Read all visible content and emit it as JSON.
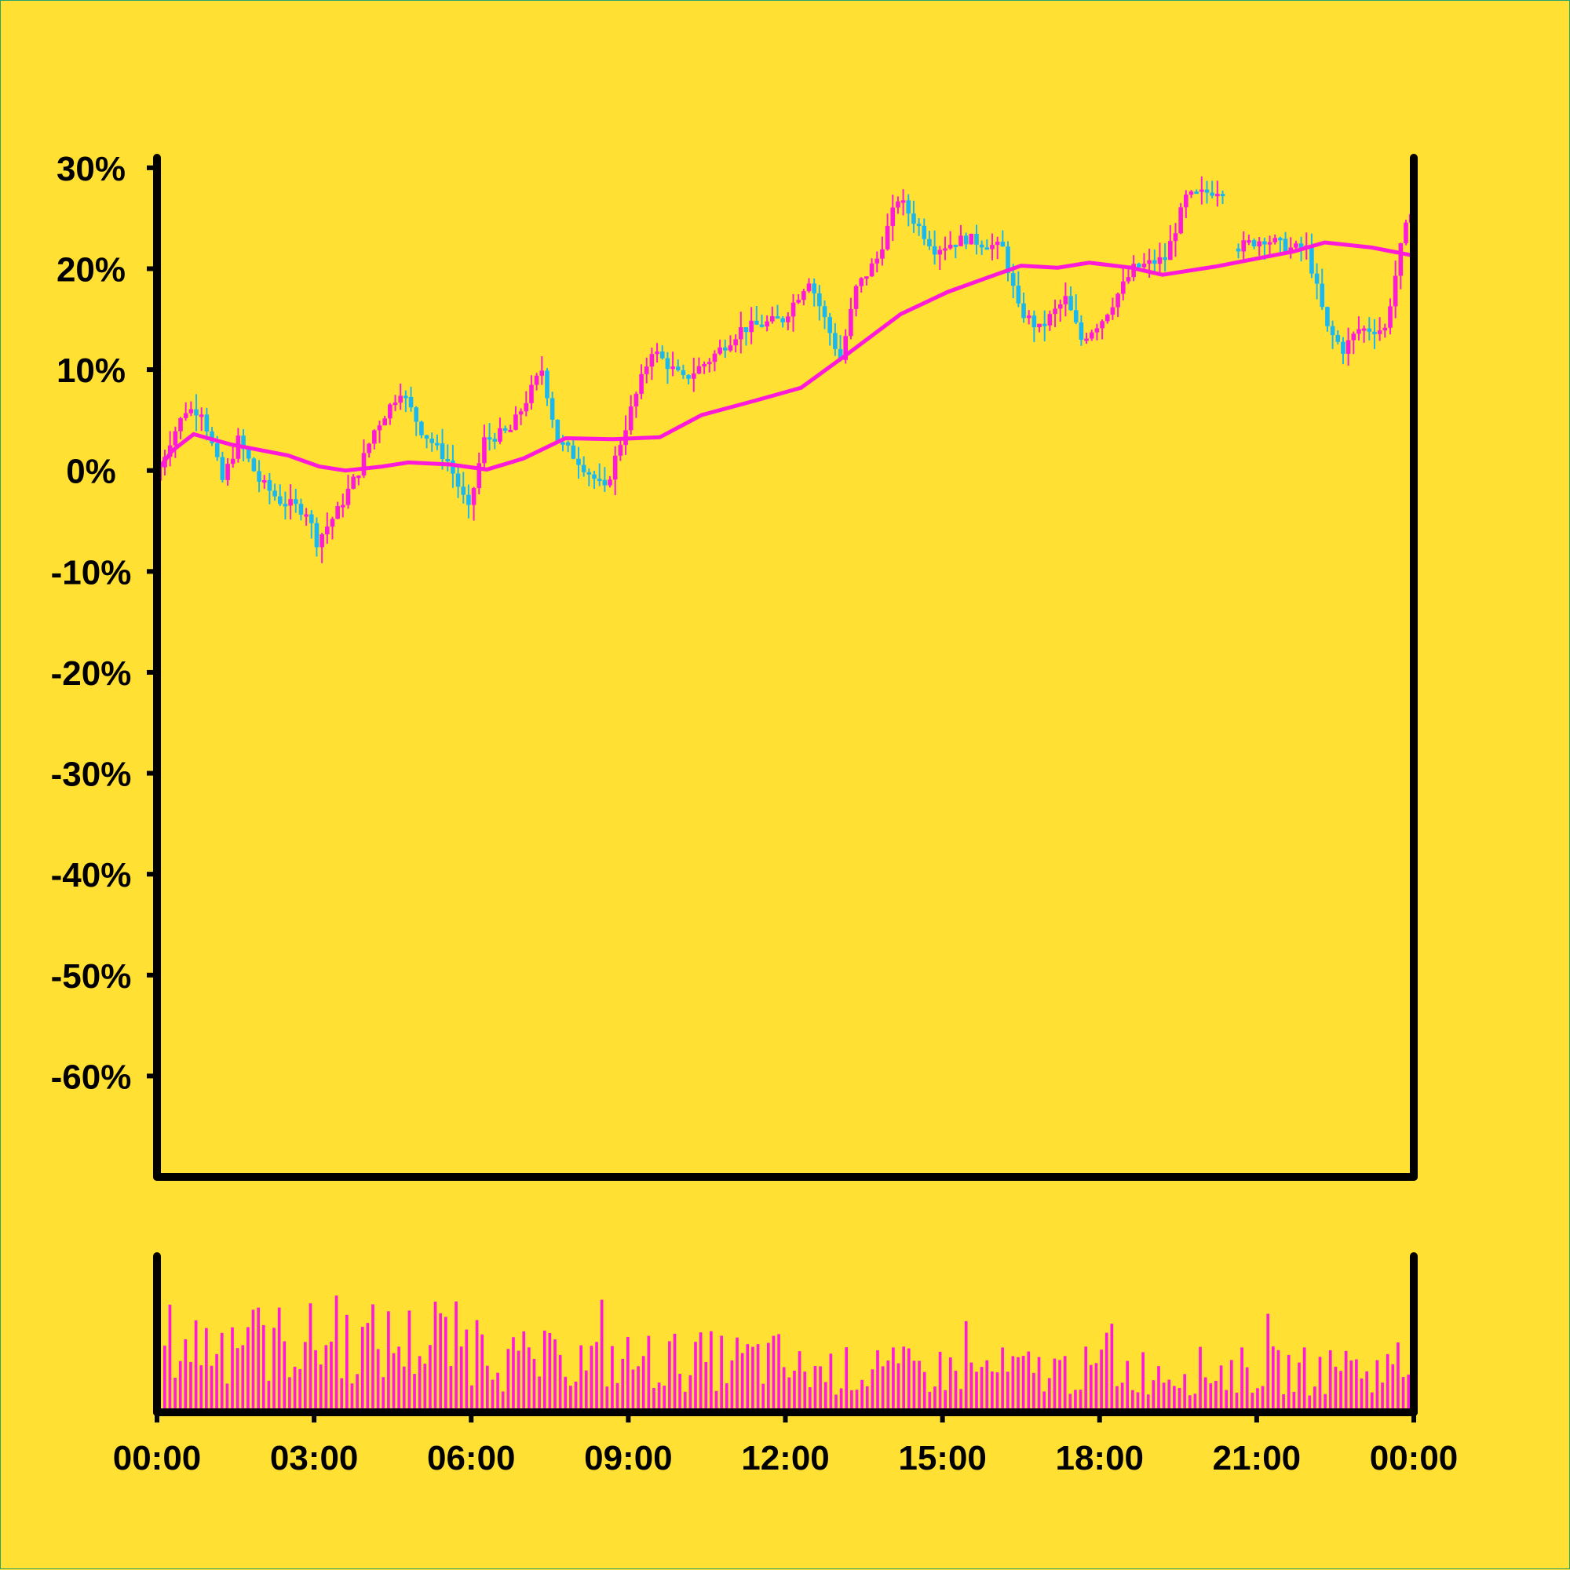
{
  "colors": {
    "background": "#ffe033",
    "axis": "#000000",
    "candle_up": "#ff1ad9",
    "candle_down": "#1ab8f0",
    "moving_average": "#ff1ad9",
    "volume": "#ff1ad9"
  },
  "chart_data": {
    "type": "candlestick",
    "title": "",
    "xlabel": "",
    "ylabel": "",
    "y_unit": "%",
    "ylim": [
      -70,
      31
    ],
    "y_ticks": [
      30,
      20,
      10,
      0,
      -10,
      -20,
      -30,
      -40,
      -50,
      -60
    ],
    "y_tick_labels": [
      "30%",
      "20%",
      "10%",
      "0%",
      "-10%",
      "-20%",
      "-30%",
      "-40%",
      "-50%",
      "-60%"
    ],
    "x_range": [
      "00:00",
      "24:00"
    ],
    "x_ticks": [
      "00:00",
      "03:00",
      "06:00",
      "09:00",
      "12:00",
      "15:00",
      "18:00",
      "21:00",
      "00:00"
    ],
    "candle_interval_minutes": 6,
    "price_path": [
      [
        0.0,
        -1
      ],
      [
        0.3,
        3
      ],
      [
        0.6,
        6
      ],
      [
        0.9,
        6
      ],
      [
        1.3,
        -1
      ],
      [
        1.6,
        3
      ],
      [
        2.0,
        -1
      ],
      [
        2.4,
        -3
      ],
      [
        2.9,
        -4
      ],
      [
        3.1,
        -7
      ],
      [
        3.5,
        -4
      ],
      [
        3.9,
        0
      ],
      [
        4.2,
        4
      ],
      [
        4.7,
        8
      ],
      [
        5.1,
        4
      ],
      [
        5.6,
        1
      ],
      [
        6.0,
        -4
      ],
      [
        6.3,
        3
      ],
      [
        6.8,
        4
      ],
      [
        7.4,
        10
      ],
      [
        7.7,
        3
      ],
      [
        8.1,
        1
      ],
      [
        8.6,
        -2
      ],
      [
        9.1,
        6
      ],
      [
        9.5,
        12
      ],
      [
        10.1,
        9
      ],
      [
        10.6,
        11
      ],
      [
        11.2,
        14
      ],
      [
        12.0,
        15
      ],
      [
        12.5,
        19
      ],
      [
        13.1,
        11
      ],
      [
        13.4,
        18
      ],
      [
        13.8,
        21
      ],
      [
        14.2,
        27
      ],
      [
        14.9,
        22
      ],
      [
        15.5,
        23
      ],
      [
        16.2,
        22
      ],
      [
        16.5,
        16
      ],
      [
        16.9,
        14
      ],
      [
        17.4,
        17
      ],
      [
        17.7,
        13
      ],
      [
        18.1,
        15
      ],
      [
        18.7,
        20
      ],
      [
        19.3,
        21
      ],
      [
        19.7,
        27
      ],
      [
        20.4,
        28
      ],
      [
        20.6,
        22
      ],
      [
        21.2,
        23
      ],
      [
        21.7,
        22
      ],
      [
        22.0,
        22
      ],
      [
        22.4,
        14
      ],
      [
        22.7,
        12
      ],
      [
        23.0,
        14
      ],
      [
        23.5,
        14
      ],
      [
        23.8,
        22
      ],
      [
        24.0,
        26
      ]
    ],
    "gap_after": 20.4,
    "gap_before": 20.6,
    "moving_average": [
      [
        0.0,
        0
      ],
      [
        0.3,
        2
      ],
      [
        0.7,
        3.6
      ],
      [
        1.4,
        2.6
      ],
      [
        2.5,
        1.5
      ],
      [
        3.1,
        0.4
      ],
      [
        3.6,
        0
      ],
      [
        4.3,
        0.4
      ],
      [
        4.8,
        0.8
      ],
      [
        5.6,
        0.6
      ],
      [
        6.3,
        0.1
      ],
      [
        7.0,
        1.2
      ],
      [
        7.8,
        3.2
      ],
      [
        8.7,
        3.1
      ],
      [
        9.6,
        3.3
      ],
      [
        10.4,
        5.5
      ],
      [
        11.4,
        6.9
      ],
      [
        12.3,
        8.2
      ],
      [
        13.2,
        11.6
      ],
      [
        14.2,
        15.5
      ],
      [
        15.1,
        17.7
      ],
      [
        15.9,
        19.2
      ],
      [
        16.5,
        20.3
      ],
      [
        17.2,
        20.1
      ],
      [
        17.8,
        20.6
      ],
      [
        18.6,
        20.1
      ],
      [
        19.2,
        19.4
      ],
      [
        20.2,
        20.2
      ],
      [
        21.0,
        21
      ],
      [
        21.7,
        21.7
      ],
      [
        22.3,
        22.6
      ],
      [
        23.2,
        22.1
      ],
      [
        24.0,
        21.3
      ]
    ],
    "volume_seed": 7
  },
  "labels": {
    "y": [
      "30%",
      "20%",
      "10%",
      "0%",
      "-10%",
      "-20%",
      "-30%",
      "-40%",
      "-50%",
      "-60%"
    ],
    "x": [
      "00:00",
      "03:00",
      "06:00",
      "09:00",
      "12:00",
      "15:00",
      "18:00",
      "21:00",
      "00:00"
    ]
  }
}
